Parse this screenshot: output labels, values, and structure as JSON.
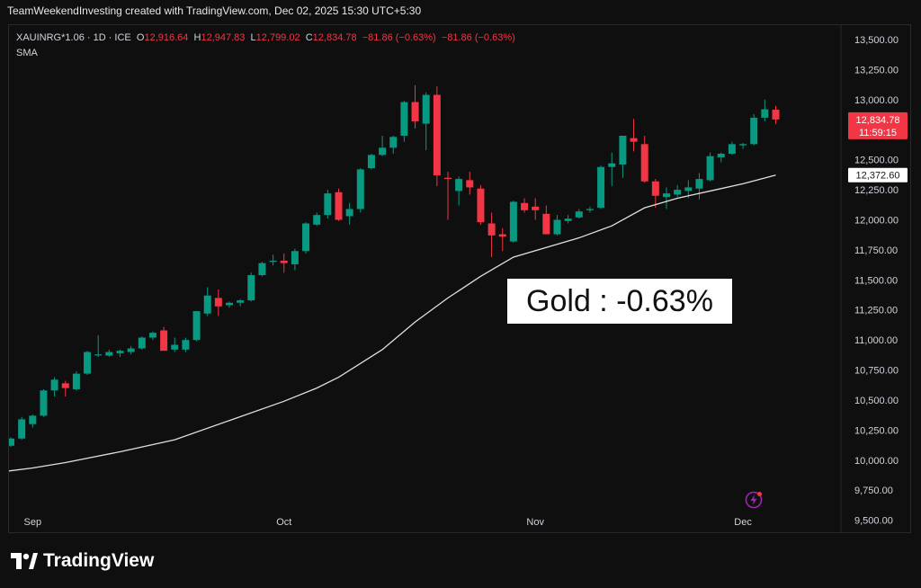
{
  "credit": "TeamWeekendInvesting created with TradingView.com, Dec 02, 2025 15:30 UTC+5:30",
  "legend": {
    "symbol": "XAUINRG*1.06 · 1D · ICE",
    "open_label": "O",
    "open": "12,916.64",
    "high_label": "H",
    "high": "12,947.83",
    "low_label": "L",
    "low": "12,799.02",
    "close_label": "C",
    "close": "12,834.78",
    "change": "−81.86 (−0.63%)",
    "change2": "−81.86 (−0.63%)",
    "indicator": "SMA"
  },
  "annotation": "Gold : -0.63%",
  "price_badge": {
    "price": "12,834.78",
    "countdown": "11:59:15"
  },
  "sma_badge": "12,372.60",
  "brand": "TradingView",
  "colors": {
    "up": "#089981",
    "down": "#f23645",
    "sma": "#e0e0e0",
    "background": "#0f0f0f"
  },
  "icons": {
    "alert": "lightning-alert-icon",
    "logo": "tradingview-logo-icon"
  },
  "chart_data": {
    "type": "candlestick",
    "y_axis": {
      "range": [
        9400,
        13620
      ],
      "ticks": [
        9500,
        9750,
        10000,
        10250,
        10500,
        10750,
        11000,
        11250,
        11500,
        11750,
        12000,
        12250,
        12500,
        12750,
        13000,
        13250,
        13500
      ],
      "tick_labels": [
        "9,500.00",
        "9,750.00",
        "10,000.00",
        "10,250.00",
        "10,500.00",
        "10,750.00",
        "11,000.00",
        "11,250.00",
        "11,500.00",
        "11,750.00",
        "12,000.00",
        "12,250.00",
        "12,500.00",
        "12,750.00",
        "13,000.00",
        "13,250.00",
        "13,500.00"
      ]
    },
    "x_axis": {
      "ticks": [
        {
          "label": "Sep",
          "index": 2
        },
        {
          "label": "Oct",
          "index": 25
        },
        {
          "label": "Nov",
          "index": 48
        },
        {
          "label": "Dec",
          "index": 67
        }
      ]
    },
    "candles": [
      {
        "o": 10120,
        "h": 10190,
        "l": 10110,
        "c": 10180
      },
      {
        "o": 10180,
        "h": 10360,
        "l": 10170,
        "c": 10340
      },
      {
        "o": 10300,
        "h": 10380,
        "l": 10270,
        "c": 10370
      },
      {
        "o": 10370,
        "h": 10590,
        "l": 10360,
        "c": 10580
      },
      {
        "o": 10580,
        "h": 10690,
        "l": 10530,
        "c": 10670
      },
      {
        "o": 10640,
        "h": 10660,
        "l": 10530,
        "c": 10600
      },
      {
        "o": 10590,
        "h": 10740,
        "l": 10580,
        "c": 10720
      },
      {
        "o": 10720,
        "h": 10910,
        "l": 10710,
        "c": 10900
      },
      {
        "o": 10880,
        "h": 11040,
        "l": 10860,
        "c": 10880
      },
      {
        "o": 10870,
        "h": 10920,
        "l": 10860,
        "c": 10900
      },
      {
        "o": 10890,
        "h": 10920,
        "l": 10860,
        "c": 10910
      },
      {
        "o": 10900,
        "h": 10950,
        "l": 10880,
        "c": 10930
      },
      {
        "o": 10930,
        "h": 11030,
        "l": 10920,
        "c": 11020
      },
      {
        "o": 11020,
        "h": 11070,
        "l": 11000,
        "c": 11060
      },
      {
        "o": 11080,
        "h": 11110,
        "l": 10920,
        "c": 10910
      },
      {
        "o": 10920,
        "h": 11020,
        "l": 10900,
        "c": 10960
      },
      {
        "o": 10920,
        "h": 11020,
        "l": 10900,
        "c": 11000
      },
      {
        "o": 11000,
        "h": 11240,
        "l": 10990,
        "c": 11240
      },
      {
        "o": 11220,
        "h": 11440,
        "l": 11200,
        "c": 11370
      },
      {
        "o": 11350,
        "h": 11420,
        "l": 11200,
        "c": 11280
      },
      {
        "o": 11290,
        "h": 11320,
        "l": 11270,
        "c": 11310
      },
      {
        "o": 11310,
        "h": 11340,
        "l": 11280,
        "c": 11330
      },
      {
        "o": 11330,
        "h": 11560,
        "l": 11320,
        "c": 11540
      },
      {
        "o": 11540,
        "h": 11650,
        "l": 11530,
        "c": 11640
      },
      {
        "o": 11650,
        "h": 11710,
        "l": 11620,
        "c": 11660
      },
      {
        "o": 11660,
        "h": 11720,
        "l": 11560,
        "c": 11640
      },
      {
        "o": 11630,
        "h": 11760,
        "l": 11580,
        "c": 11740
      },
      {
        "o": 11740,
        "h": 11980,
        "l": 11720,
        "c": 11970
      },
      {
        "o": 11960,
        "h": 12060,
        "l": 11950,
        "c": 12040
      },
      {
        "o": 12040,
        "h": 12250,
        "l": 12010,
        "c": 12220
      },
      {
        "o": 12230,
        "h": 12260,
        "l": 11990,
        "c": 12000
      },
      {
        "o": 12030,
        "h": 12140,
        "l": 11960,
        "c": 12090
      },
      {
        "o": 12090,
        "h": 12430,
        "l": 12060,
        "c": 12420
      },
      {
        "o": 12430,
        "h": 12550,
        "l": 12420,
        "c": 12540
      },
      {
        "o": 12540,
        "h": 12700,
        "l": 12530,
        "c": 12600
      },
      {
        "o": 12600,
        "h": 12700,
        "l": 12550,
        "c": 12690
      },
      {
        "o": 12700,
        "h": 12990,
        "l": 12650,
        "c": 12980
      },
      {
        "o": 12980,
        "h": 13120,
        "l": 12760,
        "c": 12820
      },
      {
        "o": 12800,
        "h": 13060,
        "l": 12580,
        "c": 13040
      },
      {
        "o": 13040,
        "h": 13110,
        "l": 12280,
        "c": 12370
      },
      {
        "o": 12350,
        "h": 12400,
        "l": 12000,
        "c": 12340
      },
      {
        "o": 12240,
        "h": 12360,
        "l": 12120,
        "c": 12340
      },
      {
        "o": 12330,
        "h": 12400,
        "l": 12210,
        "c": 12270
      },
      {
        "o": 12260,
        "h": 12290,
        "l": 11960,
        "c": 11980
      },
      {
        "o": 11970,
        "h": 12060,
        "l": 11690,
        "c": 11870
      },
      {
        "o": 11880,
        "h": 11930,
        "l": 11740,
        "c": 11860
      },
      {
        "o": 11820,
        "h": 12160,
        "l": 11810,
        "c": 12150
      },
      {
        "o": 12140,
        "h": 12180,
        "l": 12060,
        "c": 12080
      },
      {
        "o": 12110,
        "h": 12180,
        "l": 12000,
        "c": 12080
      },
      {
        "o": 12050,
        "h": 12120,
        "l": 11900,
        "c": 11880
      },
      {
        "o": 11880,
        "h": 12040,
        "l": 11870,
        "c": 12000
      },
      {
        "o": 11990,
        "h": 12040,
        "l": 11970,
        "c": 12010
      },
      {
        "o": 12020,
        "h": 12090,
        "l": 12010,
        "c": 12070
      },
      {
        "o": 12080,
        "h": 12110,
        "l": 12060,
        "c": 12090
      },
      {
        "o": 12100,
        "h": 12450,
        "l": 12090,
        "c": 12440
      },
      {
        "o": 12440,
        "h": 12560,
        "l": 12280,
        "c": 12470
      },
      {
        "o": 12460,
        "h": 12700,
        "l": 12350,
        "c": 12700
      },
      {
        "o": 12680,
        "h": 12840,
        "l": 12570,
        "c": 12650
      },
      {
        "o": 12630,
        "h": 12700,
        "l": 12310,
        "c": 12320
      },
      {
        "o": 12320,
        "h": 12340,
        "l": 12100,
        "c": 12200
      },
      {
        "o": 12190,
        "h": 12270,
        "l": 12090,
        "c": 12220
      },
      {
        "o": 12210,
        "h": 12290,
        "l": 12190,
        "c": 12250
      },
      {
        "o": 12240,
        "h": 12330,
        "l": 12180,
        "c": 12270
      },
      {
        "o": 12260,
        "h": 12390,
        "l": 12170,
        "c": 12340
      },
      {
        "o": 12330,
        "h": 12560,
        "l": 12320,
        "c": 12530
      },
      {
        "o": 12520,
        "h": 12560,
        "l": 12480,
        "c": 12550
      },
      {
        "o": 12550,
        "h": 12650,
        "l": 12540,
        "c": 12630
      },
      {
        "o": 12620,
        "h": 12640,
        "l": 12590,
        "c": 12630
      },
      {
        "o": 12630,
        "h": 12880,
        "l": 12620,
        "c": 12850
      },
      {
        "o": 12850,
        "h": 13000,
        "l": 12820,
        "c": 12920
      },
      {
        "o": 12917,
        "h": 12948,
        "l": 12799,
        "c": 12835
      }
    ],
    "sma": [
      {
        "i": 0,
        "v": 9910
      },
      {
        "i": 2,
        "v": 9935
      },
      {
        "i": 5,
        "v": 9980
      },
      {
        "i": 10,
        "v": 10070
      },
      {
        "i": 15,
        "v": 10170
      },
      {
        "i": 20,
        "v": 10330
      },
      {
        "i": 25,
        "v": 10490
      },
      {
        "i": 28,
        "v": 10600
      },
      {
        "i": 30,
        "v": 10690
      },
      {
        "i": 34,
        "v": 10920
      },
      {
        "i": 37,
        "v": 11150
      },
      {
        "i": 40,
        "v": 11350
      },
      {
        "i": 43,
        "v": 11530
      },
      {
        "i": 46,
        "v": 11690
      },
      {
        "i": 49,
        "v": 11770
      },
      {
        "i": 52,
        "v": 11850
      },
      {
        "i": 55,
        "v": 11950
      },
      {
        "i": 58,
        "v": 12100
      },
      {
        "i": 61,
        "v": 12180
      },
      {
        "i": 64,
        "v": 12240
      },
      {
        "i": 67,
        "v": 12300
      },
      {
        "i": 70,
        "v": 12372.6
      }
    ]
  }
}
